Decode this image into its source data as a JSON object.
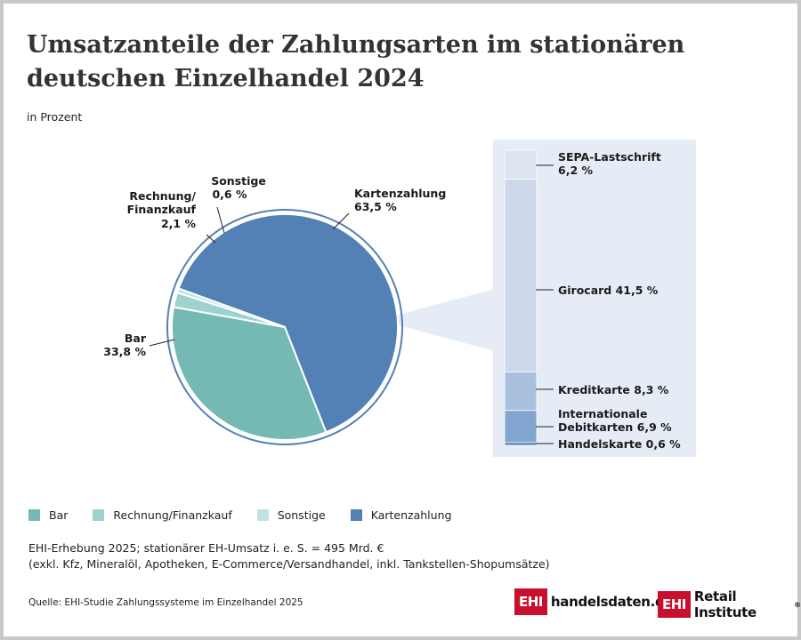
{
  "title": "Umsatzanteile der Zahlungsarten im stationären deutschen Einzelhandel 2024",
  "subtitle": "in Prozent",
  "colors": {
    "bar": "#75b9b4",
    "rechnung": "#9fd2cf",
    "sonstige": "#bfe2e2",
    "karten": "#5381b6",
    "panel": "#e6ecf6",
    "sepa": "#dde5f0",
    "girocard": "#cdd9ea",
    "kreditkarte": "#a8c0de",
    "intl": "#82a6d0",
    "handels": "#4f7fc0"
  },
  "chart_data": [
    {
      "type": "pie",
      "title": "",
      "slices": [
        {
          "label": "Kartenzahlung",
          "value": 63.5,
          "value_text": "63,5 %",
          "color": "#5381b6"
        },
        {
          "label": "Bar",
          "value": 33.8,
          "value_text": "33,8 %",
          "color": "#75b9b4"
        },
        {
          "label": "Rechnung/ Finanzkauf",
          "value": 2.1,
          "value_text": "2,1 %",
          "color": "#9fd2cf"
        },
        {
          "label": "Sonstige",
          "value": 0.6,
          "value_text": "0,6 %",
          "color": "#bfe2e2"
        }
      ]
    },
    {
      "type": "bar",
      "stacked": true,
      "breakdown_of": "Kartenzahlung",
      "segments": [
        {
          "label": "SEPA-Lastschrift",
          "value": 6.2,
          "text": "SEPA-Lastschrift 6,2 %",
          "color": "#dde5f0"
        },
        {
          "label": "Girocard",
          "value": 41.5,
          "text": "Girocard 41,5 %",
          "color": "#cdd9ea"
        },
        {
          "label": "Kreditkarte",
          "value": 8.3,
          "text": "Kreditkarte 8,3 %",
          "color": "#a8c0de"
        },
        {
          "label": "Internationale Debitkarten",
          "value": 6.9,
          "text": "Internationale Debitkarten 6,9 %",
          "color": "#82a6d0"
        },
        {
          "label": "Handelskarte",
          "value": 0.6,
          "text": "Handelskarte 0,6 %",
          "color": "#4f7fc0"
        }
      ]
    }
  ],
  "labels": {
    "sonstige_name": "Sonstige",
    "sonstige_value": "0,6 %",
    "rechnung_line1": "Rechnung/",
    "rechnung_line2": "Finanzkauf",
    "rechnung_value": "2,1 %",
    "karten_name": "Kartenzahlung",
    "karten_value": "63,5 %",
    "bar_name": "Bar",
    "bar_value": "33,8 %",
    "sepa_name": "SEPA-Lastschrift",
    "sepa_value": "6,2 %",
    "girocard": "Girocard 41,5 %",
    "kredit": "Kreditkarte 8,3 %",
    "intl_line1": "Internationale",
    "intl_line2": "Debitkarten 6,9 %",
    "handels": "Handelskarte 0,6 %"
  },
  "legend": [
    {
      "label": "Bar",
      "color": "#75b9b4"
    },
    {
      "label": "Rechnung/Finanzkauf",
      "color": "#9fd2cf"
    },
    {
      "label": "Sonstige",
      "color": "#bfe2e2"
    },
    {
      "label": "Kartenzahlung",
      "color": "#5381b6"
    }
  ],
  "note_line1": "EHI-Erhebung 2025; stationärer EH-Umsatz i. e. S. = 495 Mrd. €",
  "note_line2": "(exkl. Kfz, Mineralöl, Apotheken, E-Commerce/Versandhandel, inkl. Tankstellen-Shopumsätze)",
  "source": "Quelle: EHI-Studie Zahlungssysteme im Einzelhandel 2025",
  "logo1_box": "EHI",
  "logo1_text": "handelsdaten.de",
  "logo2_box": "EHI",
  "logo2_text": "Retail Institute",
  "logo2_mark": "®"
}
